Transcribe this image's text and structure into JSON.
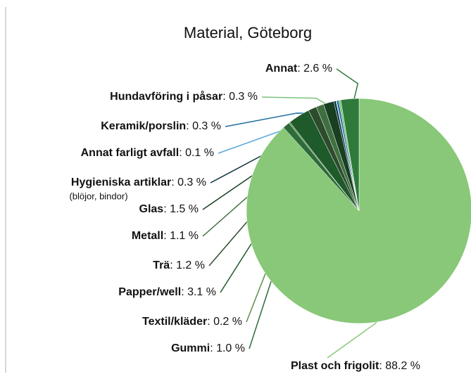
{
  "chart_data": {
    "type": "pie",
    "title": "Material, Göteborg",
    "categories": [
      "Plast och frigolit",
      "Gummi",
      "Textil/kläder",
      "Papper/well",
      "Trä",
      "Metall",
      "Glas",
      "Hygieniska artiklar",
      "Annat farligt avfall",
      "Keramik/porslin",
      "Hundavföring i påsar",
      "Annat"
    ],
    "values": [
      88.2,
      1.0,
      0.2,
      3.1,
      1.2,
      1.1,
      1.5,
      0.3,
      0.1,
      0.3,
      0.3,
      2.6
    ],
    "value_labels": [
      ": 88.2 %",
      ": 1.0 %",
      ": 0.2 %",
      ": 3.1 %",
      ": 1.2 %",
      ": 1.1 %",
      ": 1.5 %",
      ": 0.3 %",
      ": 0.1 %",
      ": 0.3 %",
      ": 0.3 %",
      ": 2.6 %"
    ],
    "colors": [
      "#88c878",
      "#2e6b3a",
      "#5a8f4c",
      "#1f5a2a",
      "#2d4b2d",
      "#3f6f3f",
      "#173f20",
      "#0b2e3f",
      "#5aa7dc",
      "#1f6fa0",
      "#7cc37a",
      "#2f7a3a"
    ],
    "annotations": [
      {
        "text": "(blöjor, bindor)"
      }
    ]
  }
}
